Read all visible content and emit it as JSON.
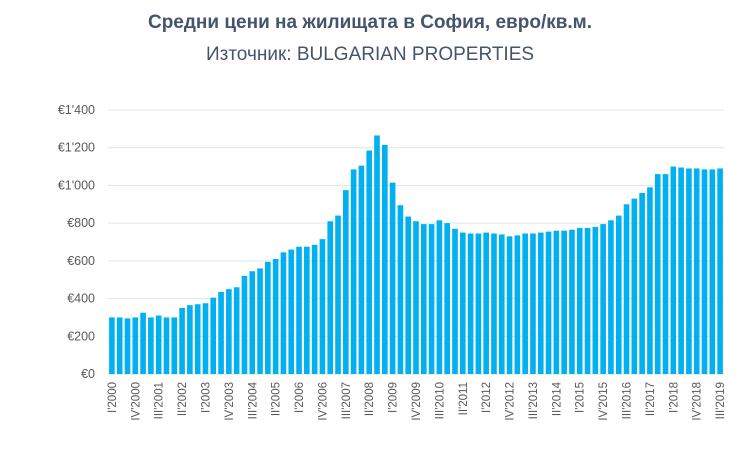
{
  "chart_data": {
    "type": "bar",
    "title": "Средни цени на жилищата в София, евро/кв.м.",
    "subtitle": "Източник: BULGARIAN PROPERTIES",
    "xlabel": "",
    "ylabel": "",
    "ylim": [
      0,
      1400
    ],
    "yticks": [
      "€0",
      "€200",
      "€400",
      "€600",
      "€800",
      "€1'000",
      "€1'200",
      "€1'400"
    ],
    "ytick_values": [
      0,
      200,
      400,
      600,
      800,
      1000,
      1200,
      1400
    ],
    "grid": true,
    "bar_color": "#00b0f0",
    "x_tick_labels": [
      "I'2000",
      "IV'2000",
      "III'2001",
      "II'2002",
      "I'2003",
      "IV'2003",
      "III'2004",
      "II'2005",
      "I'2006",
      "IV'2006",
      "III'2007",
      "II'2008",
      "I'2009",
      "IV'2009",
      "III'2010",
      "II'2011",
      "I'2012",
      "IV'2012",
      "III'2013",
      "II'2014",
      "I'2015",
      "IV'2015",
      "III'2016",
      "II'2017",
      "I'2018",
      "IV'2018",
      "III'2019"
    ],
    "x_tick_every": 3,
    "values": [
      300,
      300,
      295,
      300,
      325,
      300,
      310,
      300,
      300,
      350,
      365,
      370,
      375,
      405,
      435,
      450,
      460,
      520,
      545,
      560,
      595,
      610,
      645,
      660,
      675,
      675,
      685,
      715,
      810,
      840,
      975,
      1085,
      1105,
      1185,
      1265,
      1215,
      1015,
      895,
      835,
      810,
      795,
      795,
      815,
      800,
      770,
      750,
      745,
      745,
      750,
      745,
      740,
      730,
      735,
      745,
      745,
      750,
      755,
      760,
      760,
      765,
      775,
      775,
      780,
      795,
      815,
      840,
      900,
      930,
      960,
      990,
      1060,
      1060,
      1100,
      1095,
      1090,
      1090,
      1085,
      1085,
      1090
    ]
  }
}
